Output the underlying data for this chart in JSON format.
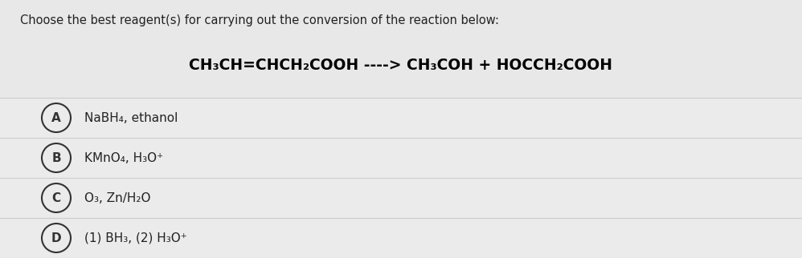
{
  "background_color": "#e8e8e8",
  "header_text": "Choose the best reagent(s) for carrying out the conversion of the reaction below:",
  "header_fontsize": 10.5,
  "header_color": "#222222",
  "reaction_text": "CH₃CH=CHCH₂COOH ----> CH₃COH + HOCCH₂COOH",
  "reaction_fontsize": 13.5,
  "reaction_color": "#000000",
  "options": [
    {
      "letter": "A",
      "text": "NaBH₄, ethanol"
    },
    {
      "letter": "B",
      "text": "KMnO₄, H₃O⁺"
    },
    {
      "letter": "C",
      "text": "O₃, Zn/H₂O"
    },
    {
      "letter": "D",
      "text": "(1) BH₃, (2) H₃O⁺"
    }
  ],
  "option_fontsize": 11,
  "option_color": "#222222",
  "circle_edge_color": "#333333",
  "circle_linewidth": 1.5,
  "row_bg_color": "#ebebeb",
  "divider_color": "#cccccc",
  "fig_width": 9.98,
  "fig_height": 3.22,
  "dpi": 100
}
